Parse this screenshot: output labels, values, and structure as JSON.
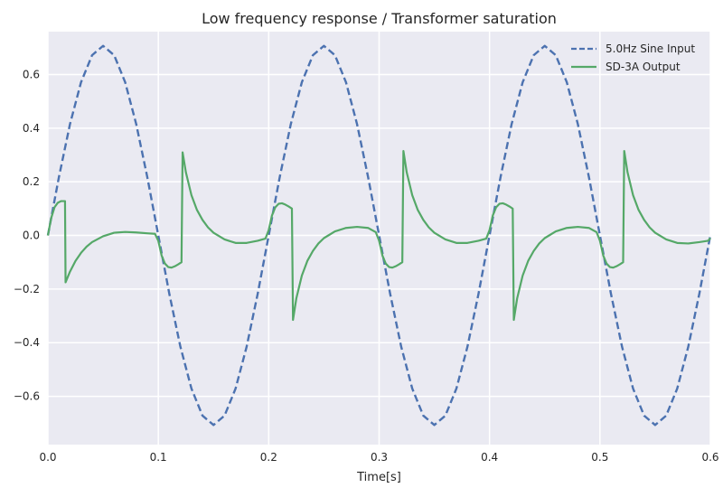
{
  "chart_data": {
    "type": "line",
    "title": "Low frequency response / Transformer saturation",
    "xlabel": "Time[s]",
    "ylabel": "",
    "xlim": [
      0.0,
      0.6
    ],
    "ylim": [
      -0.78,
      0.76
    ],
    "xticks": [
      0.0,
      0.1,
      0.2,
      0.3,
      0.4,
      0.5,
      0.6
    ],
    "xtick_labels": [
      "0.0",
      "0.1",
      "0.2",
      "0.3",
      "0.4",
      "0.5",
      "0.6"
    ],
    "yticks": [
      -0.6,
      -0.4,
      -0.2,
      0.0,
      0.2,
      0.4,
      0.6
    ],
    "ytick_labels": [
      "−0.6",
      "−0.4",
      "−0.2",
      "0.0",
      "0.2",
      "0.4",
      "0.6"
    ],
    "grid": true,
    "legend_position": "top-right",
    "background_color": "#EAEAF2",
    "series": [
      {
        "name": "5.0Hz Sine Input",
        "color": "#4C72B0",
        "style": "dashed",
        "x": [
          0.0,
          0.01,
          0.02,
          0.03,
          0.04,
          0.05,
          0.06,
          0.07,
          0.08,
          0.09,
          0.1,
          0.11,
          0.12,
          0.13,
          0.14,
          0.15,
          0.16,
          0.17,
          0.18,
          0.19,
          0.2,
          0.21,
          0.22,
          0.23,
          0.24,
          0.25,
          0.26,
          0.27,
          0.28,
          0.29,
          0.3,
          0.31,
          0.32,
          0.33,
          0.34,
          0.35,
          0.36,
          0.37,
          0.38,
          0.39,
          0.4,
          0.41,
          0.42,
          0.43,
          0.44,
          0.45,
          0.46,
          0.47,
          0.48,
          0.49,
          0.5,
          0.51,
          0.52,
          0.53,
          0.54,
          0.55,
          0.56,
          0.57,
          0.58,
          0.59,
          0.6
        ],
        "y": [
          0.0,
          0.218,
          0.415,
          0.571,
          0.672,
          0.707,
          0.672,
          0.571,
          0.415,
          0.218,
          0.0,
          -0.218,
          -0.415,
          -0.571,
          -0.672,
          -0.707,
          -0.672,
          -0.571,
          -0.415,
          -0.218,
          0.0,
          0.218,
          0.415,
          0.571,
          0.672,
          0.707,
          0.672,
          0.571,
          0.415,
          0.218,
          0.0,
          -0.218,
          -0.415,
          -0.571,
          -0.672,
          -0.707,
          -0.672,
          -0.571,
          -0.415,
          -0.218,
          0.0,
          0.218,
          0.415,
          0.571,
          0.672,
          0.707,
          0.672,
          0.571,
          0.415,
          0.218,
          0.0,
          -0.218,
          -0.415,
          -0.571,
          -0.672,
          -0.707,
          -0.672,
          -0.571,
          -0.415,
          -0.218,
          0.0
        ]
      },
      {
        "name": "SD-3A Output",
        "color": "#55A868",
        "style": "solid",
        "x": [
          0.0,
          0.003,
          0.006,
          0.009,
          0.012,
          0.0155,
          0.016,
          0.02,
          0.025,
          0.03,
          0.035,
          0.04,
          0.05,
          0.06,
          0.07,
          0.08,
          0.09,
          0.097,
          0.1,
          0.103,
          0.106,
          0.109,
          0.112,
          0.115,
          0.118,
          0.121,
          0.122,
          0.125,
          0.13,
          0.135,
          0.14,
          0.145,
          0.15,
          0.16,
          0.17,
          0.18,
          0.19,
          0.197,
          0.2,
          0.203,
          0.206,
          0.209,
          0.212,
          0.215,
          0.218,
          0.221,
          0.222,
          0.225,
          0.23,
          0.235,
          0.24,
          0.245,
          0.25,
          0.26,
          0.27,
          0.28,
          0.29,
          0.297,
          0.3,
          0.303,
          0.306,
          0.309,
          0.312,
          0.315,
          0.318,
          0.321,
          0.322,
          0.325,
          0.33,
          0.335,
          0.34,
          0.345,
          0.35,
          0.36,
          0.37,
          0.38,
          0.39,
          0.397,
          0.4,
          0.403,
          0.406,
          0.409,
          0.412,
          0.415,
          0.418,
          0.421,
          0.422,
          0.425,
          0.43,
          0.435,
          0.44,
          0.445,
          0.45,
          0.46,
          0.47,
          0.48,
          0.49,
          0.497,
          0.5,
          0.503,
          0.506,
          0.509,
          0.512,
          0.515,
          0.518,
          0.521,
          0.522,
          0.525,
          0.53,
          0.535,
          0.54,
          0.545,
          0.55,
          0.56,
          0.57,
          0.58,
          0.59,
          0.598,
          0.6
        ],
        "y": [
          0.0,
          0.065,
          0.105,
          0.122,
          0.128,
          0.128,
          -0.175,
          -0.135,
          -0.095,
          -0.065,
          -0.042,
          -0.025,
          -0.003,
          0.01,
          0.013,
          0.011,
          0.008,
          0.006,
          -0.02,
          -0.075,
          -0.105,
          -0.118,
          -0.12,
          -0.115,
          -0.108,
          -0.1,
          0.31,
          0.235,
          0.15,
          0.095,
          0.058,
          0.03,
          0.01,
          -0.015,
          -0.028,
          -0.028,
          -0.02,
          -0.012,
          0.02,
          0.075,
          0.105,
          0.118,
          0.12,
          0.115,
          0.108,
          0.1,
          -0.315,
          -0.235,
          -0.15,
          -0.095,
          -0.058,
          -0.03,
          -0.01,
          0.015,
          0.028,
          0.032,
          0.028,
          0.012,
          -0.02,
          -0.075,
          -0.105,
          -0.118,
          -0.12,
          -0.115,
          -0.108,
          -0.1,
          0.315,
          0.235,
          0.15,
          0.095,
          0.058,
          0.03,
          0.01,
          -0.015,
          -0.028,
          -0.028,
          -0.02,
          -0.012,
          0.02,
          0.075,
          0.105,
          0.118,
          0.12,
          0.115,
          0.108,
          0.1,
          -0.315,
          -0.235,
          -0.15,
          -0.095,
          -0.058,
          -0.03,
          -0.01,
          0.015,
          0.028,
          0.032,
          0.028,
          0.012,
          -0.02,
          -0.075,
          -0.105,
          -0.118,
          -0.12,
          -0.115,
          -0.108,
          -0.1,
          0.315,
          0.235,
          0.15,
          0.095,
          0.058,
          0.03,
          0.01,
          -0.015,
          -0.028,
          -0.03,
          -0.025,
          -0.02,
          -0.01
        ]
      }
    ]
  }
}
